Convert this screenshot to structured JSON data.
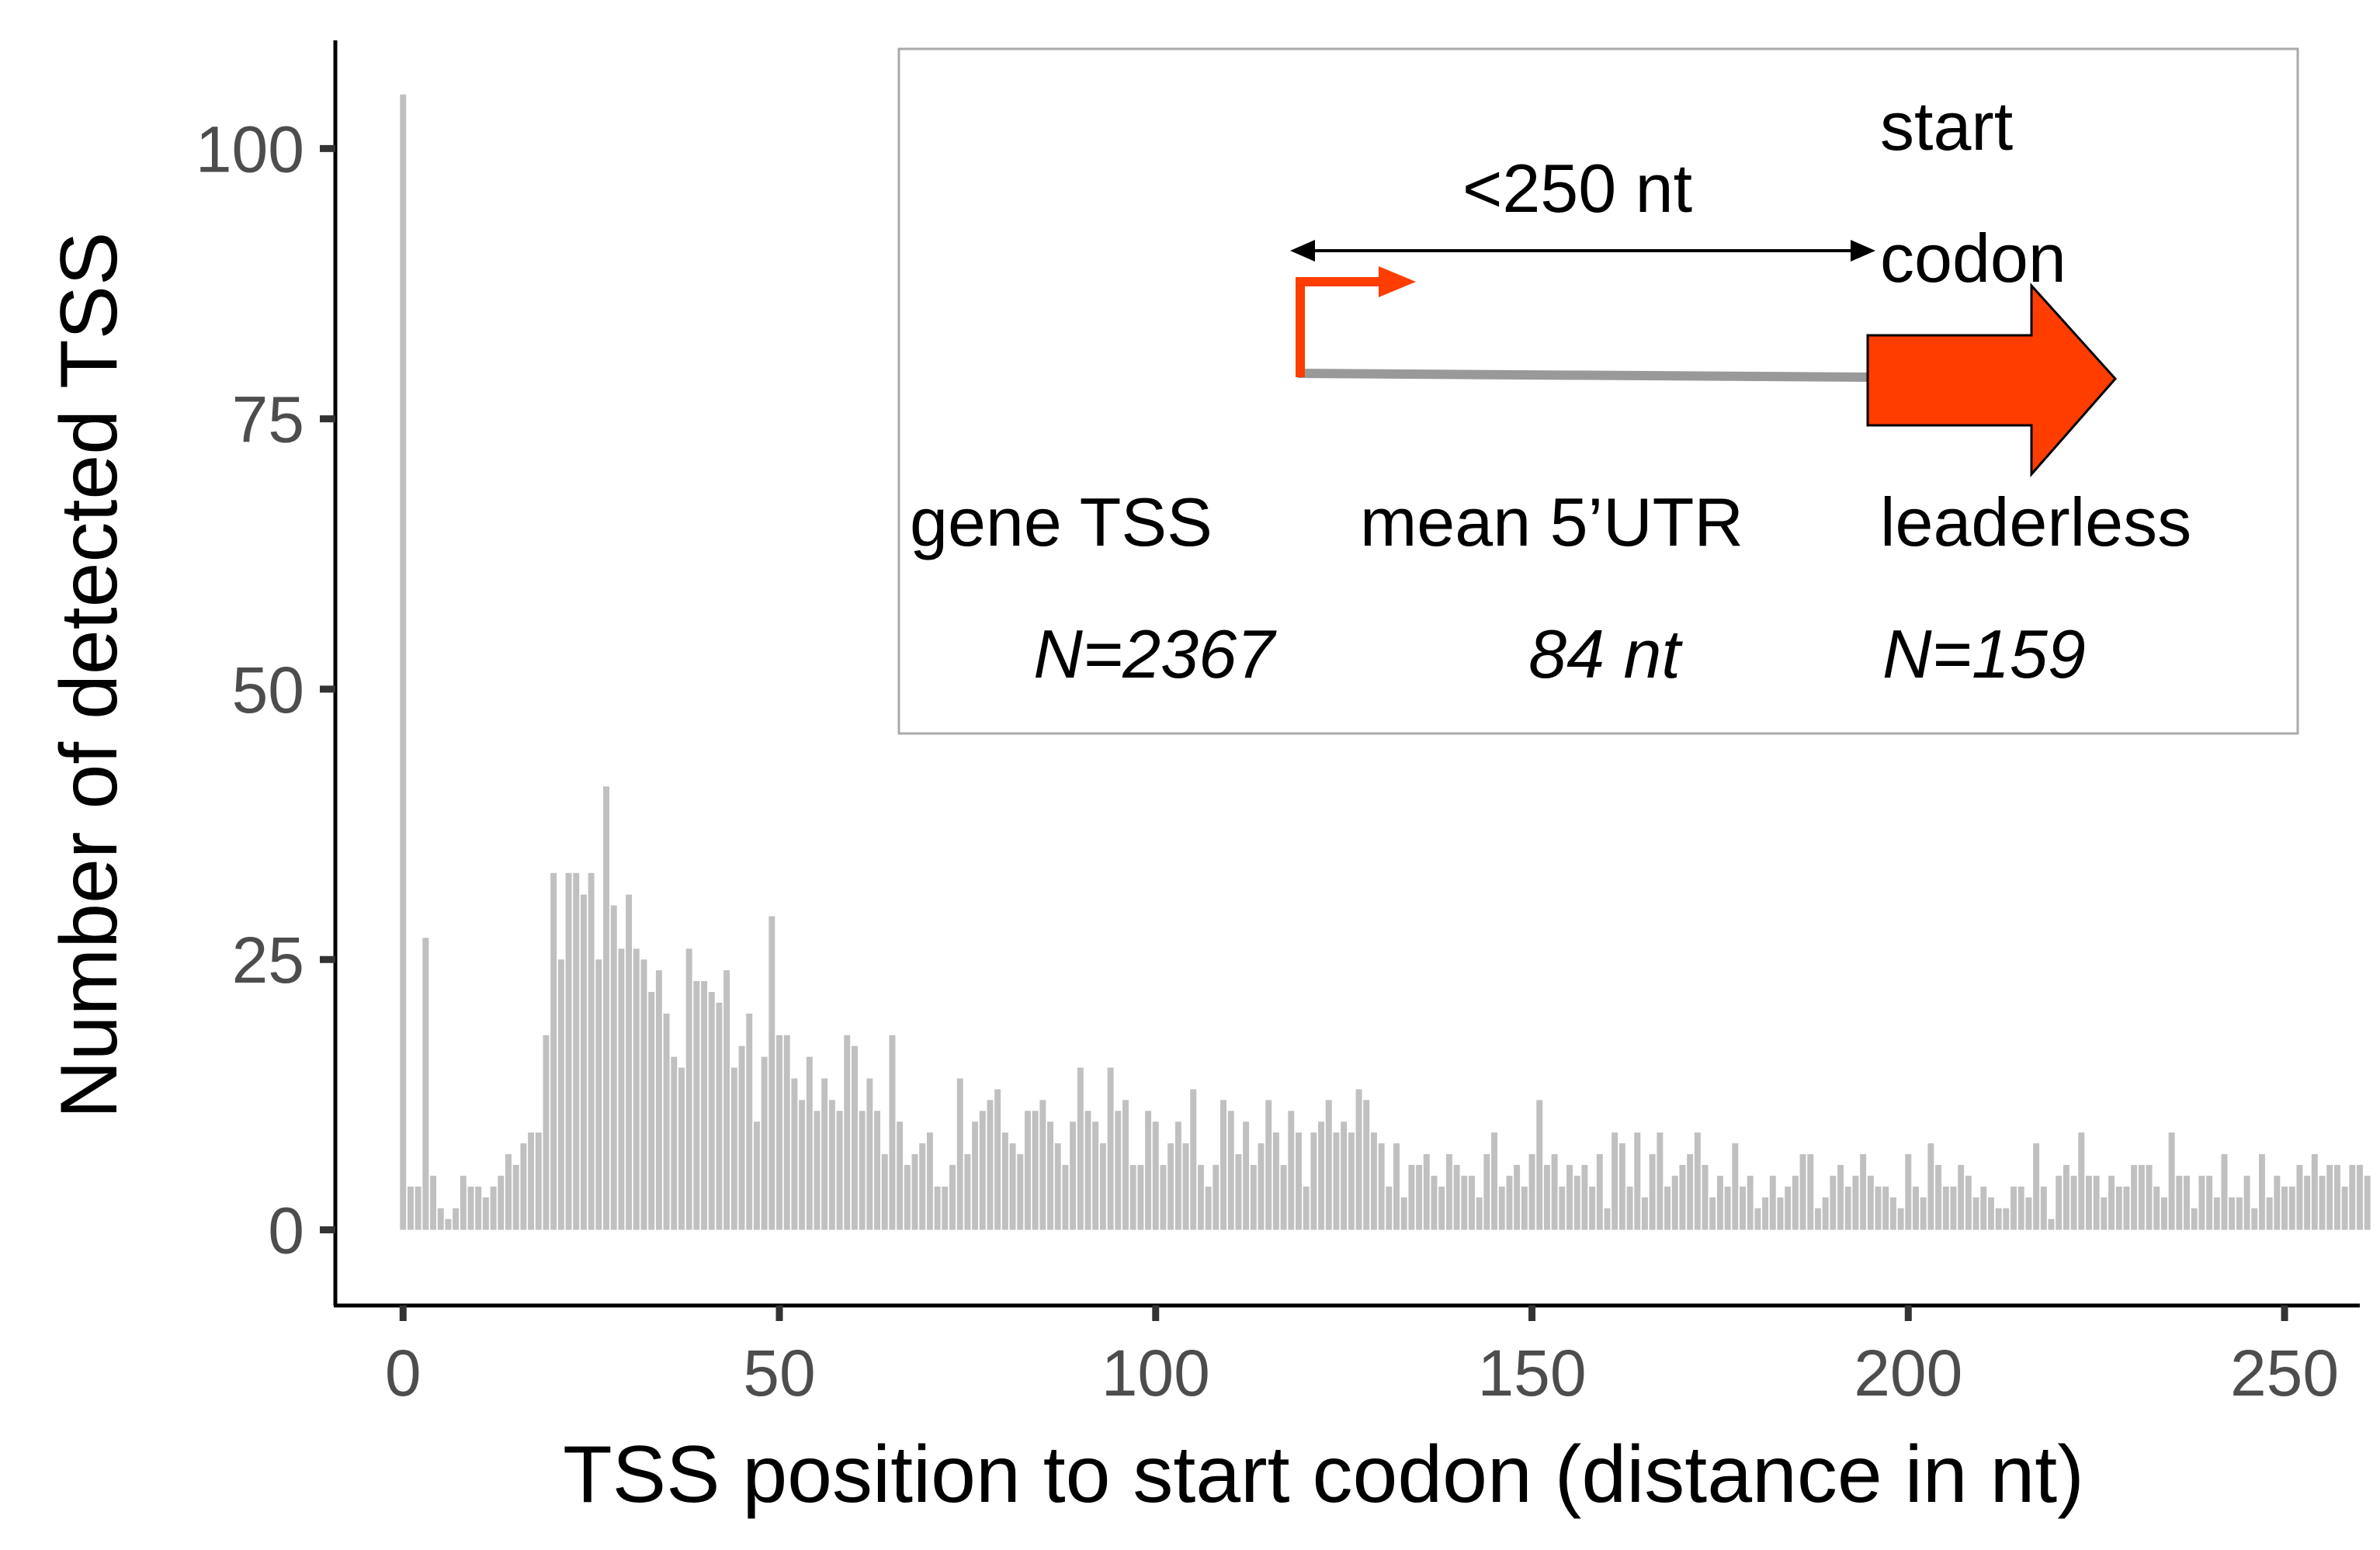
{
  "chart_data": {
    "type": "bar",
    "xlabel": "TSS position to start codon (distance in nt)",
    "ylabel": "Number of detected TSS",
    "xlim": [
      -9,
      260
    ],
    "ylim": [
      -7,
      110
    ],
    "x_ticks": [
      0,
      50,
      100,
      150,
      200,
      250
    ],
    "y_ticks": [
      0,
      25,
      50,
      75,
      100
    ],
    "bar_color": "#c0c0c0",
    "x_start": 0,
    "values": [
      105,
      4,
      4,
      27,
      5,
      2,
      1,
      2,
      5,
      4,
      4,
      3,
      4,
      5,
      7,
      6,
      8,
      9,
      9,
      18,
      33,
      25,
      33,
      33,
      31,
      33,
      25,
      41,
      30,
      26,
      31,
      26,
      25,
      22,
      24,
      20,
      16,
      15,
      26,
      23,
      23,
      22,
      21,
      24,
      15,
      17,
      20,
      10,
      16,
      29,
      18,
      18,
      14,
      12,
      16,
      11,
      14,
      12,
      11,
      18,
      17,
      11,
      14,
      11,
      7,
      18,
      10,
      6,
      7,
      8,
      9,
      4,
      4,
      6,
      14,
      7,
      10,
      11,
      12,
      13,
      9,
      8,
      7,
      11,
      11,
      12,
      10,
      8,
      6,
      10,
      15,
      11,
      10,
      8,
      15,
      11,
      12,
      6,
      6,
      11,
      10,
      6,
      8,
      10,
      8,
      13,
      6,
      4,
      6,
      12,
      11,
      7,
      10,
      6,
      8,
      12,
      9,
      6,
      11,
      9,
      4,
      9,
      10,
      12,
      9,
      10,
      9,
      13,
      12,
      9,
      8,
      4,
      8,
      3,
      6,
      6,
      7,
      5,
      4,
      7,
      6,
      5,
      5,
      3,
      7,
      9,
      4,
      5,
      6,
      4,
      7,
      12,
      6,
      7,
      4,
      6,
      5,
      6,
      4,
      7,
      2,
      9,
      8,
      4,
      9,
      3,
      7,
      9,
      4,
      5,
      6,
      7,
      9,
      6,
      3,
      5,
      4,
      8,
      4,
      5,
      2,
      3,
      5,
      3,
      4,
      5,
      7,
      7,
      2,
      3,
      5,
      6,
      4,
      5,
      7,
      5,
      4,
      4,
      3,
      2,
      7,
      4,
      3,
      8,
      6,
      4,
      4,
      6,
      5,
      3,
      4,
      3,
      2,
      2,
      4,
      4,
      3,
      8,
      4,
      1,
      5,
      6,
      5,
      9,
      5,
      5,
      3,
      5,
      4,
      4,
      6,
      6,
      6,
      4,
      3,
      9,
      5,
      5,
      2,
      5,
      5,
      3,
      7,
      3,
      3,
      5,
      2,
      7,
      3,
      5,
      4,
      4,
      6,
      5,
      7,
      5,
      6,
      6,
      4,
      6,
      6,
      5
    ],
    "inset": {
      "arrow_length_label": "<250 nt",
      "start_codon_label_line1": "start",
      "start_codon_label_line2": "codon",
      "col1_label": "gene TSS",
      "col2_label": "mean 5’UTR",
      "col3_label": "leaderless",
      "col1_value": "N=2367",
      "col2_value": "84 nt",
      "col3_value": "N=159",
      "promoter_color": "#ff3d00",
      "gene_arrow_color": "#ff3d00",
      "utr_line_color": "#999999",
      "frame_color": "#aaaaaa"
    }
  }
}
